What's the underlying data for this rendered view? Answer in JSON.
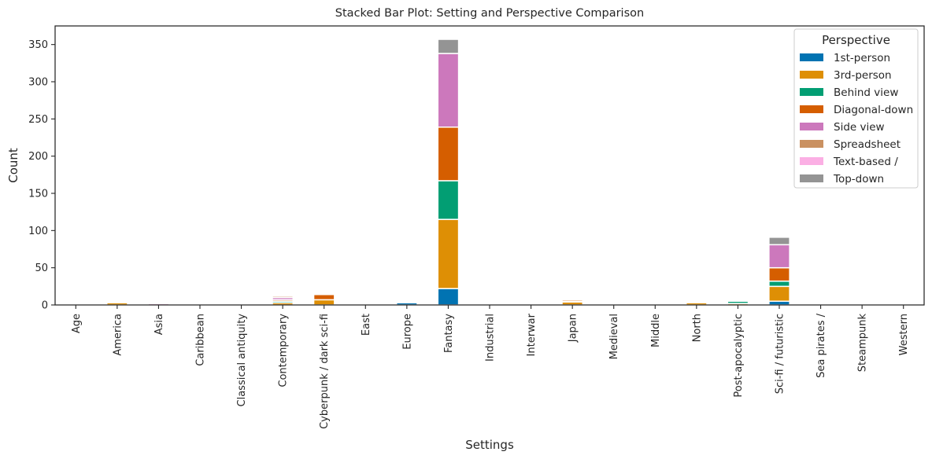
{
  "chart_data": {
    "type": "bar",
    "stacked": true,
    "title": "Stacked Bar Plot: Setting and Perspective Comparison",
    "xlabel": "Settings",
    "ylabel": "Count",
    "ylim": [
      0,
      375
    ],
    "yticks": [
      0,
      50,
      100,
      150,
      200,
      250,
      300,
      350
    ],
    "grid": false,
    "legend_title": "Perspective",
    "legend_position": "top-right",
    "categories": [
      "Age",
      "America",
      "Asia",
      "Caribbean",
      "Classical antiquity",
      "Contemporary",
      "Cyberpunk / dark sci-fi",
      "East",
      "Europe",
      "Fantasy",
      "Industrial",
      "Interwar",
      "Japan",
      "Medieval",
      "Middle",
      "North",
      "Post-apocalyptic",
      "Sci-fi / futuristic",
      "Sea pirates /",
      "Steampunk",
      "Western"
    ],
    "series": [
      {
        "name": "1st-person",
        "color": "#0173b2",
        "values": [
          0,
          0,
          0,
          0,
          0,
          0,
          0,
          0,
          3,
          22,
          0,
          0,
          0,
          0,
          0,
          0,
          0,
          5,
          0,
          0,
          0
        ]
      },
      {
        "name": "3rd-person",
        "color": "#de8f05",
        "values": [
          0,
          3,
          0,
          0,
          0,
          3,
          7,
          0,
          1,
          93,
          0,
          0,
          4,
          0,
          0,
          3,
          2,
          20,
          0,
          0,
          0
        ]
      },
      {
        "name": "Behind view",
        "color": "#029e73",
        "values": [
          0,
          1,
          0,
          0,
          0,
          2,
          0,
          0,
          0,
          52,
          0,
          0,
          1,
          0,
          0,
          1,
          3,
          7,
          0,
          0,
          0
        ]
      },
      {
        "name": "Diagonal-down",
        "color": "#d55e00",
        "values": [
          0,
          0,
          0,
          0,
          0,
          2,
          7,
          0,
          0,
          72,
          0,
          0,
          2,
          0,
          0,
          0,
          1,
          18,
          0,
          0,
          0
        ]
      },
      {
        "name": "Side view",
        "color": "#cc78bc",
        "values": [
          0,
          1,
          2,
          0,
          0,
          3,
          0,
          0,
          1,
          99,
          0,
          0,
          1,
          0,
          0,
          1,
          1,
          31,
          0,
          0,
          0
        ]
      },
      {
        "name": "Spreadsheet",
        "color": "#ca9161",
        "values": [
          0,
          1,
          0,
          0,
          0,
          2,
          0,
          0,
          0,
          0,
          0,
          0,
          1,
          0,
          0,
          0,
          0,
          0,
          0,
          0,
          0
        ]
      },
      {
        "name": "Text-based /",
        "color": "#fbafe4",
        "values": [
          0,
          0,
          1,
          0,
          0,
          1,
          0,
          0,
          1,
          0,
          0,
          0,
          1,
          0,
          0,
          0,
          0,
          0,
          0,
          0,
          0
        ]
      },
      {
        "name": "Top-down",
        "color": "#949494",
        "values": [
          0,
          0,
          0,
          0,
          0,
          1,
          0,
          0,
          0,
          19,
          0,
          0,
          1,
          0,
          0,
          0,
          0,
          10,
          0,
          0,
          0
        ]
      }
    ]
  }
}
